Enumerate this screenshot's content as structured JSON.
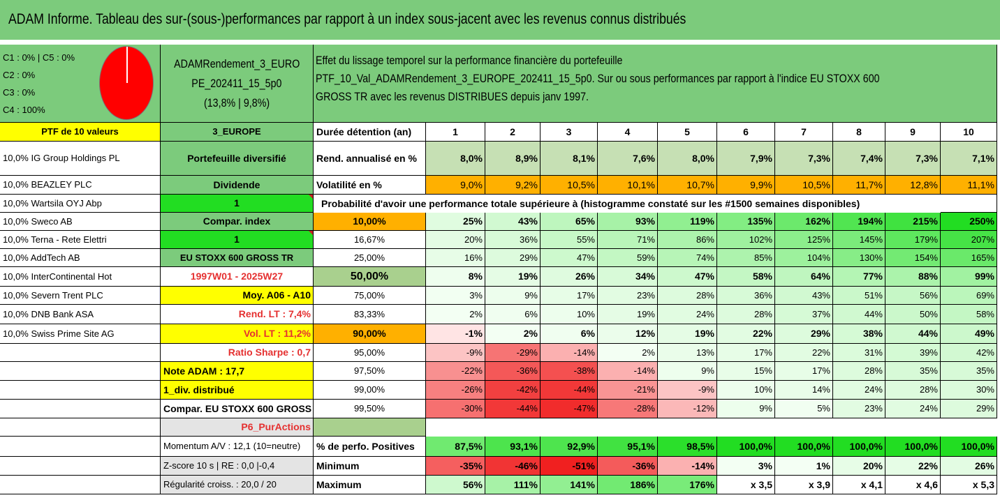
{
  "title": "ADAM Informe. Tableau des sur-(sous-)performances par rapport à un index sous-jacent avec les revenus connus distribués",
  "legend": [
    "C1 : 0% | C5 : 0%",
    "C2 : 0%",
    "C3 : 0%",
    "C4 : 100%"
  ],
  "fund": {
    "name_line1": "ADAMRendement_3_EURO",
    "name_line2": "PE_202411_15_5p0",
    "name_line3": "(13,8% | 9,8%)",
    "description": [
      "Effet du lissage temporel sur la performance financière du portefeuille",
      "PTF_10_Val_ADAMRendement_3_EUROPE_202411_15_5p0. Sur ou sous performances par rapport à l'indice EU STOXX 600",
      "GROSS TR avec les revenus DISTRIBUES depuis janv 1997."
    ]
  },
  "portfolio": {
    "header": "PTF de 10 valeurs",
    "holdings": [
      "10,0% IG Group Holdings PL",
      "10,0% BEAZLEY PLC",
      "10,0% Wartsila OYJ Abp",
      "10,0% Sweco AB",
      "10,0% Terna - Rete Elettri",
      "10,0% AddTech AB",
      "10,0% InterContinental Hot",
      "10,0% Severn Trent PLC",
      "10,0% DNB Bank ASA",
      "10,0% Swiss Prime Site AG"
    ]
  },
  "info": {
    "region": "3_EUROPE",
    "type": "Portefeuille diversifié",
    "income": "Dividende",
    "value1": "1",
    "compar": "Compar. index",
    "value2": "1",
    "index": "EU STOXX 600 GROSS TR",
    "period": "1997W01 - 2025W27",
    "moy": "Moy. A06 - A10",
    "rend_lt": "Rend. LT : 7,4%",
    "vol_lt": "Vol. LT : 11,2%",
    "sharpe": "Ratio Sharpe : 0,7",
    "note": "Note ADAM : 17,7",
    "div": "1_div. distribué",
    "compar_full": "Compar. EU STOXX 600 GROSS TR",
    "p6": "P6_PurActions",
    "momentum": "Momentum A/V : 12,1 (10=neutre)",
    "zscore": "Z-score 10 s | RE : 0,0 |-0,4",
    "regularite": "Régularité croiss. : 20,0 / 20"
  },
  "table": {
    "duration_label": "Durée détention (an)",
    "years": [
      "1",
      "2",
      "3",
      "4",
      "5",
      "6",
      "7",
      "8",
      "9",
      "10"
    ],
    "rend_label": "Rend. annualisé en %",
    "rend": [
      "8,0%",
      "8,9%",
      "8,1%",
      "7,6%",
      "8,0%",
      "7,9%",
      "7,3%",
      "7,4%",
      "7,3%",
      "7,1%"
    ],
    "vol_label": "Volatilité en %",
    "vol": [
      "9,0%",
      "9,2%",
      "10,5%",
      "10,1%",
      "10,7%",
      "9,9%",
      "10,5%",
      "11,7%",
      "12,8%",
      "11,1%"
    ],
    "prob_note": "Probabilité d'avoir une performance totale supérieure à (histogramme constaté sur les #1500 semaines disponibles)",
    "prob_rows": [
      {
        "p": "10,00%",
        "v": [
          "25%",
          "43%",
          "65%",
          "93%",
          "119%",
          "135%",
          "162%",
          "194%",
          "215%",
          "250%"
        ]
      },
      {
        "p": "16,67%",
        "v": [
          "20%",
          "36%",
          "55%",
          "71%",
          "86%",
          "102%",
          "125%",
          "145%",
          "179%",
          "207%"
        ]
      },
      {
        "p": "25,00%",
        "v": [
          "16%",
          "29%",
          "47%",
          "59%",
          "74%",
          "85%",
          "104%",
          "130%",
          "154%",
          "165%"
        ]
      },
      {
        "p": "50,00%",
        "v": [
          "8%",
          "19%",
          "26%",
          "34%",
          "47%",
          "58%",
          "64%",
          "77%",
          "88%",
          "99%"
        ]
      },
      {
        "p": "75,00%",
        "v": [
          "3%",
          "9%",
          "17%",
          "23%",
          "28%",
          "36%",
          "43%",
          "51%",
          "56%",
          "69%"
        ]
      },
      {
        "p": "83,33%",
        "v": [
          "2%",
          "6%",
          "10%",
          "19%",
          "24%",
          "28%",
          "37%",
          "44%",
          "50%",
          "58%"
        ]
      },
      {
        "p": "90,00%",
        "v": [
          "-1%",
          "2%",
          "6%",
          "12%",
          "19%",
          "22%",
          "29%",
          "38%",
          "44%",
          "49%"
        ]
      },
      {
        "p": "95,00%",
        "v": [
          "-9%",
          "-29%",
          "-14%",
          "2%",
          "13%",
          "17%",
          "22%",
          "31%",
          "39%",
          "42%"
        ]
      },
      {
        "p": "97,50%",
        "v": [
          "-22%",
          "-36%",
          "-38%",
          "-14%",
          "9%",
          "15%",
          "17%",
          "28%",
          "35%",
          "35%"
        ]
      },
      {
        "p": "99,00%",
        "v": [
          "-26%",
          "-42%",
          "-44%",
          "-21%",
          "-9%",
          "10%",
          "14%",
          "24%",
          "28%",
          "30%"
        ]
      },
      {
        "p": "99,50%",
        "v": [
          "-30%",
          "-44%",
          "-47%",
          "-28%",
          "-12%",
          "9%",
          "5%",
          "23%",
          "24%",
          "29%"
        ]
      }
    ],
    "pos_label": "% de perfo. Positives",
    "pos": [
      "87,5%",
      "93,1%",
      "92,9%",
      "95,1%",
      "98,5%",
      "100,0%",
      "100,0%",
      "100,0%",
      "100,0%",
      "100,0%"
    ],
    "min_label": "Minimum",
    "min": [
      "-35%",
      "-46%",
      "-51%",
      "-36%",
      "-14%",
      "3%",
      "1%",
      "20%",
      "22%",
      "26%"
    ],
    "max_label": "Maximum",
    "max": [
      "56%",
      "111%",
      "141%",
      "186%",
      "176%",
      "x 3,5",
      "x 3,9",
      "x 4,1",
      "x 4,6",
      "x 5,3"
    ]
  },
  "colors": {
    "banner": "#7ccb7c",
    "panel": "#7ccb7c",
    "yellow": "#ffff00",
    "bright_green": "#22dd22",
    "orange": "#ffb000",
    "light_green": "#c6e0b4",
    "red_text": "#e53030"
  }
}
